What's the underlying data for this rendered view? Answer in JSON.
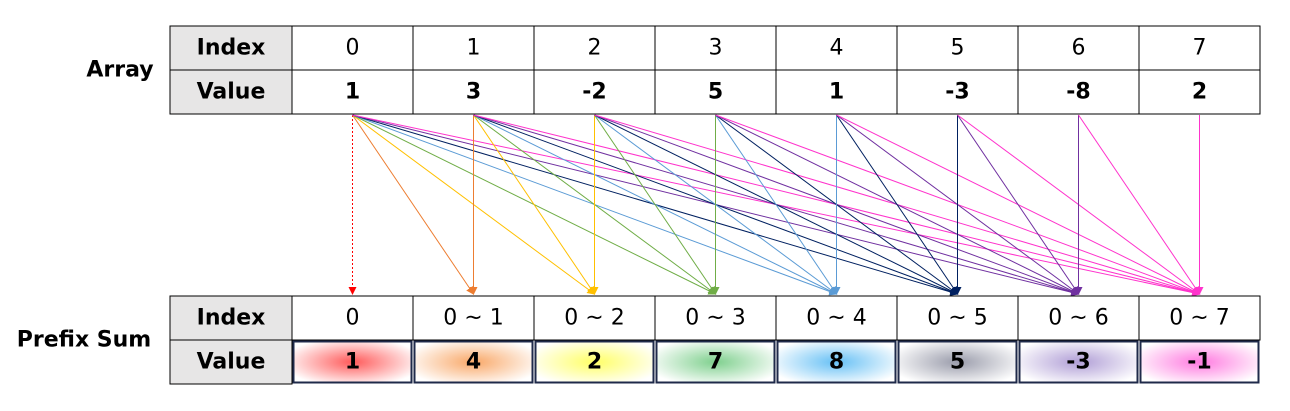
{
  "array": {
    "label": "Array",
    "headers": [
      "Index",
      "Value"
    ],
    "index": [
      0,
      1,
      2,
      3,
      4,
      5,
      6,
      7
    ],
    "values": [
      1,
      3,
      -2,
      5,
      1,
      -3,
      -8,
      2
    ]
  },
  "prefix_sum": {
    "label": "Prefix Sum",
    "headers": [
      "Index",
      "Value"
    ],
    "index": [
      "0",
      "0 ~ 1",
      "0 ~ 2",
      "0 ~ 3",
      "0 ~ 4",
      "0 ~ 5",
      "0 ~ 6",
      "0 ~ 7"
    ],
    "values": [
      1,
      4,
      2,
      7,
      8,
      5,
      -3,
      -1
    ]
  }
}
